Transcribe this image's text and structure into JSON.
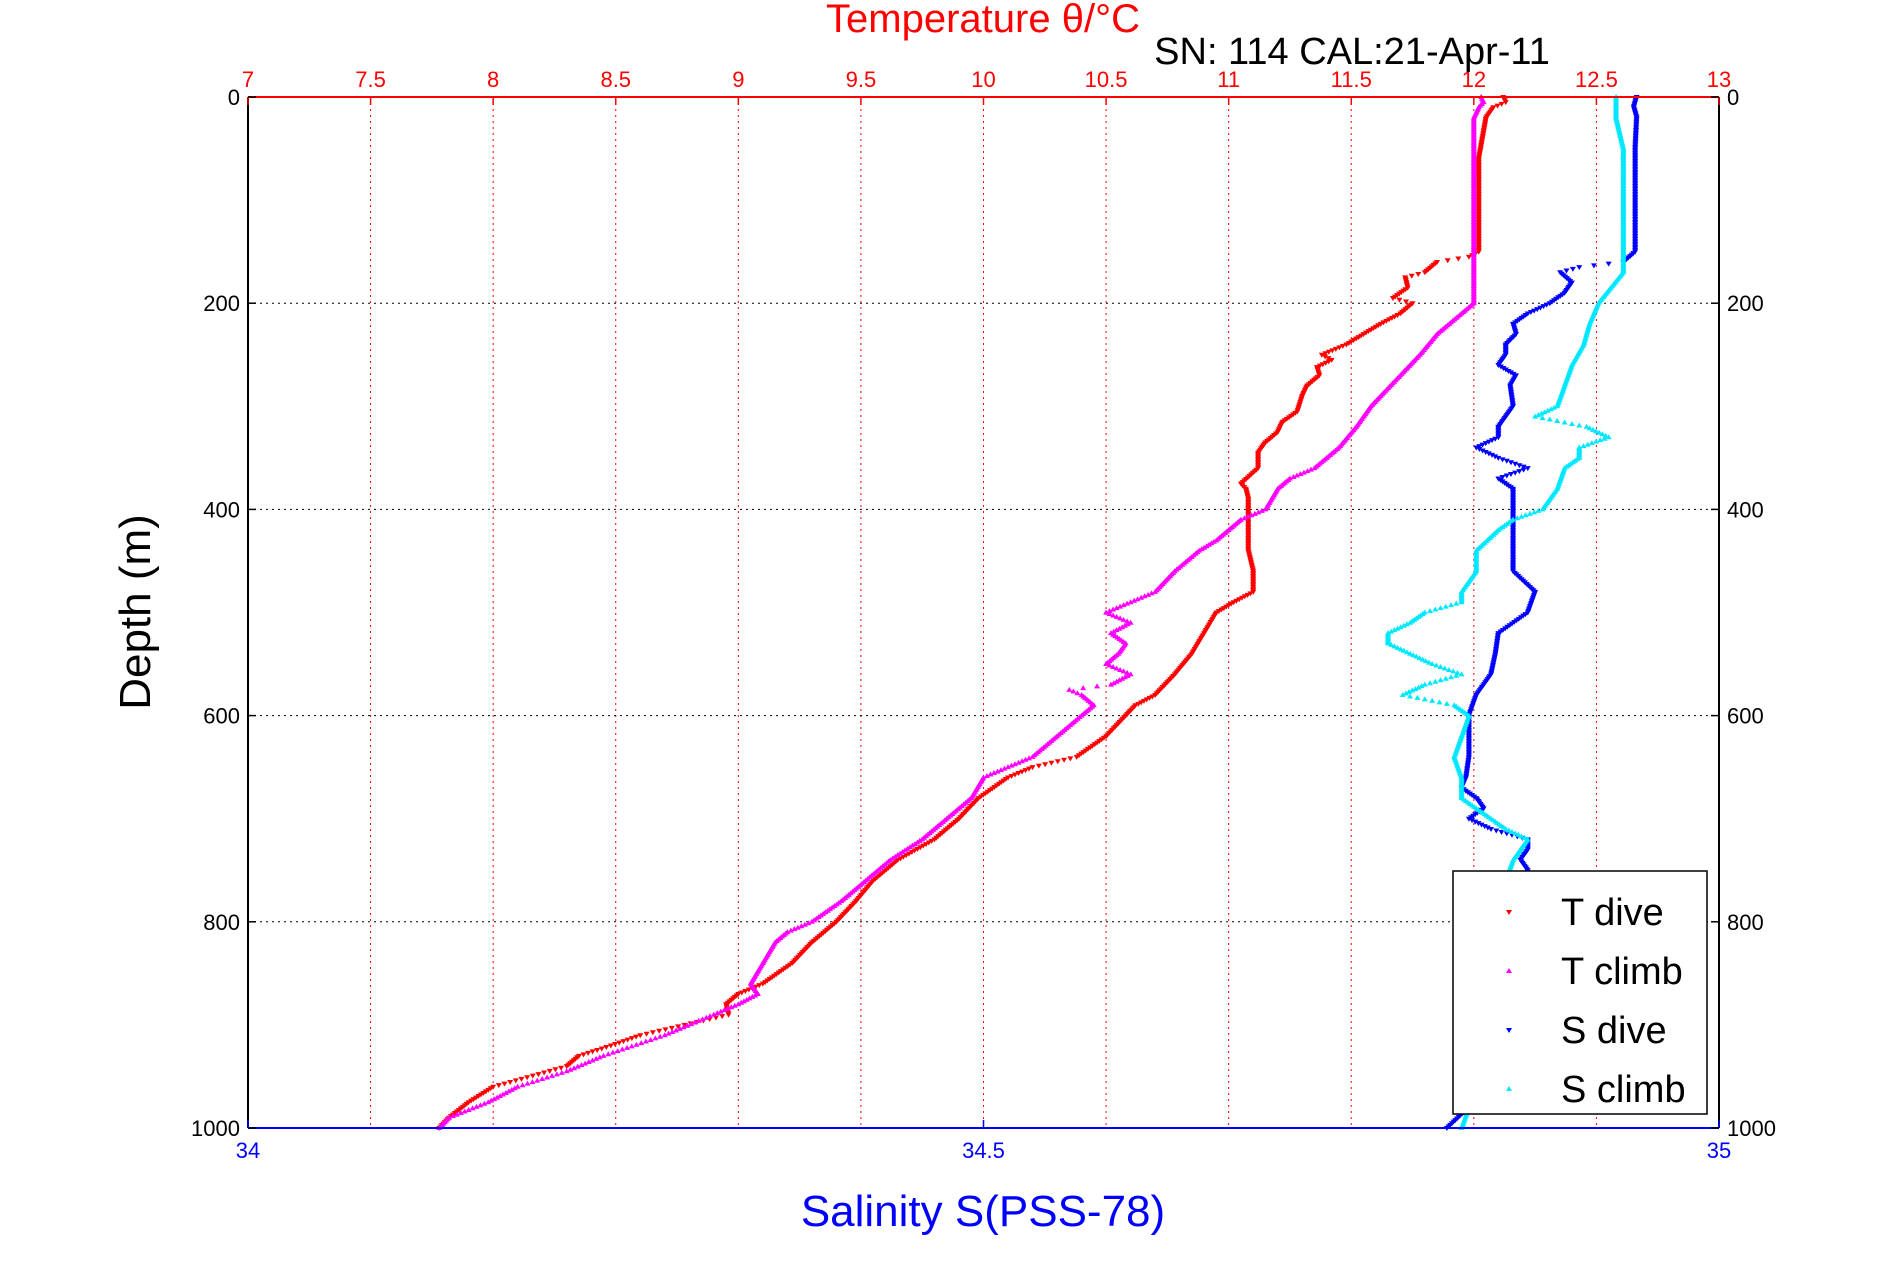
{
  "chart_data": {
    "type": "scatter",
    "title": "Temperature θ/°C",
    "subtitle": "SN: 114  CAL:21-Apr-11",
    "ylabel": "Depth (m)",
    "xlabel_top": "Temperature θ/°C",
    "xlabel_bottom": "Salinity S(PSS-78)",
    "ylim": [
      0,
      1000
    ],
    "y_reversed": true,
    "y_ticks": [
      0,
      200,
      400,
      600,
      800,
      1000
    ],
    "temperature_axis": {
      "range": [
        7,
        13
      ],
      "ticks": [
        "7",
        "7.5",
        "8",
        "8.5",
        "9",
        "9.5",
        "10",
        "10.5",
        "11",
        "11.5",
        "12",
        "12.5",
        "13"
      ]
    },
    "salinity_axis": {
      "range": [
        34,
        35
      ],
      "ticks": [
        "34",
        "34.5",
        "35"
      ]
    },
    "grid": true,
    "legend_position": "bottom-right",
    "colors": {
      "T dive": "#ff0000",
      "T climb": "#ff00ff",
      "S dive": "#0000ff",
      "S climb": "#00e8ff"
    },
    "series": [
      {
        "name": "T dive",
        "axis": "temperature",
        "points": [
          [
            0,
            12.12
          ],
          [
            5,
            12.13
          ],
          [
            10,
            12.08
          ],
          [
            20,
            12.05
          ],
          [
            60,
            12.02
          ],
          [
            100,
            12.02
          ],
          [
            150,
            12.02
          ],
          [
            155,
            11.98
          ],
          [
            160,
            11.85
          ],
          [
            170,
            11.8
          ],
          [
            175,
            11.72
          ],
          [
            185,
            11.73
          ],
          [
            195,
            11.67
          ],
          [
            200,
            11.75
          ],
          [
            210,
            11.7
          ],
          [
            220,
            11.62
          ],
          [
            230,
            11.55
          ],
          [
            240,
            11.48
          ],
          [
            250,
            11.38
          ],
          [
            255,
            11.42
          ],
          [
            262,
            11.36
          ],
          [
            270,
            11.37
          ],
          [
            280,
            11.32
          ],
          [
            290,
            11.3
          ],
          [
            305,
            11.28
          ],
          [
            315,
            11.22
          ],
          [
            325,
            11.2
          ],
          [
            335,
            11.15
          ],
          [
            345,
            11.12
          ],
          [
            360,
            11.12
          ],
          [
            375,
            11.05
          ],
          [
            380,
            11.07
          ],
          [
            390,
            11.08
          ],
          [
            400,
            11.08
          ],
          [
            420,
            11.08
          ],
          [
            440,
            11.08
          ],
          [
            460,
            11.1
          ],
          [
            480,
            11.1
          ],
          [
            490,
            11.02
          ],
          [
            500,
            10.95
          ],
          [
            520,
            10.9
          ],
          [
            540,
            10.85
          ],
          [
            560,
            10.78
          ],
          [
            580,
            10.7
          ],
          [
            590,
            10.62
          ],
          [
            600,
            10.58
          ],
          [
            620,
            10.5
          ],
          [
            640,
            10.38
          ],
          [
            650,
            10.2
          ],
          [
            660,
            10.1
          ],
          [
            680,
            9.98
          ],
          [
            700,
            9.9
          ],
          [
            720,
            9.8
          ],
          [
            740,
            9.65
          ],
          [
            760,
            9.55
          ],
          [
            780,
            9.48
          ],
          [
            800,
            9.4
          ],
          [
            820,
            9.3
          ],
          [
            840,
            9.22
          ],
          [
            860,
            9.1
          ],
          [
            870,
            9.0
          ],
          [
            880,
            8.95
          ],
          [
            890,
            8.96
          ],
          [
            900,
            8.78
          ],
          [
            910,
            8.6
          ],
          [
            920,
            8.48
          ],
          [
            930,
            8.35
          ],
          [
            940,
            8.3
          ],
          [
            960,
            8.0
          ],
          [
            975,
            7.9
          ],
          [
            990,
            7.82
          ],
          [
            1000,
            7.78
          ]
        ]
      },
      {
        "name": "T climb",
        "axis": "temperature",
        "points": [
          [
            0,
            12.03
          ],
          [
            5,
            12.04
          ],
          [
            10,
            12.02
          ],
          [
            20,
            12.0
          ],
          [
            40,
            12.0
          ],
          [
            100,
            12.0
          ],
          [
            150,
            12.0
          ],
          [
            200,
            12.0
          ],
          [
            210,
            11.95
          ],
          [
            220,
            11.9
          ],
          [
            230,
            11.85
          ],
          [
            250,
            11.78
          ],
          [
            270,
            11.7
          ],
          [
            290,
            11.62
          ],
          [
            300,
            11.58
          ],
          [
            320,
            11.52
          ],
          [
            340,
            11.45
          ],
          [
            350,
            11.4
          ],
          [
            360,
            11.35
          ],
          [
            370,
            11.25
          ],
          [
            380,
            11.2
          ],
          [
            400,
            11.15
          ],
          [
            410,
            11.05
          ],
          [
            420,
            11.0
          ],
          [
            430,
            10.95
          ],
          [
            440,
            10.88
          ],
          [
            460,
            10.78
          ],
          [
            480,
            10.7
          ],
          [
            490,
            10.6
          ],
          [
            500,
            10.5
          ],
          [
            510,
            10.6
          ],
          [
            520,
            10.52
          ],
          [
            530,
            10.58
          ],
          [
            540,
            10.55
          ],
          [
            550,
            10.5
          ],
          [
            560,
            10.6
          ],
          [
            570,
            10.52
          ],
          [
            575,
            10.35
          ],
          [
            580,
            10.4
          ],
          [
            590,
            10.45
          ],
          [
            600,
            10.4
          ],
          [
            620,
            10.3
          ],
          [
            640,
            10.2
          ],
          [
            650,
            10.1
          ],
          [
            660,
            10.0
          ],
          [
            680,
            9.95
          ],
          [
            700,
            9.85
          ],
          [
            720,
            9.75
          ],
          [
            740,
            9.62
          ],
          [
            760,
            9.52
          ],
          [
            780,
            9.42
          ],
          [
            800,
            9.3
          ],
          [
            810,
            9.2
          ],
          [
            820,
            9.15
          ],
          [
            840,
            9.1
          ],
          [
            860,
            9.05
          ],
          [
            870,
            9.08
          ],
          [
            880,
            9.0
          ],
          [
            890,
            8.9
          ],
          [
            910,
            8.7
          ],
          [
            930,
            8.45
          ],
          [
            945,
            8.3
          ],
          [
            960,
            8.1
          ],
          [
            975,
            7.98
          ],
          [
            990,
            7.82
          ],
          [
            1000,
            7.78
          ]
        ]
      },
      {
        "name": "S dive",
        "axis": "salinity",
        "points": [
          [
            0,
            34.944
          ],
          [
            10,
            34.942
          ],
          [
            20,
            34.944
          ],
          [
            50,
            34.943
          ],
          [
            100,
            34.943
          ],
          [
            150,
            34.943
          ],
          [
            160,
            34.935
          ],
          [
            165,
            34.905
          ],
          [
            170,
            34.892
          ],
          [
            180,
            34.9
          ],
          [
            190,
            34.895
          ],
          [
            200,
            34.885
          ],
          [
            210,
            34.87
          ],
          [
            220,
            34.86
          ],
          [
            230,
            34.862
          ],
          [
            240,
            34.855
          ],
          [
            250,
            34.855
          ],
          [
            260,
            34.85
          ],
          [
            270,
            34.862
          ],
          [
            280,
            34.858
          ],
          [
            300,
            34.86
          ],
          [
            310,
            34.855
          ],
          [
            320,
            34.85
          ],
          [
            330,
            34.85
          ],
          [
            340,
            34.835
          ],
          [
            350,
            34.85
          ],
          [
            360,
            34.87
          ],
          [
            370,
            34.85
          ],
          [
            380,
            34.86
          ],
          [
            400,
            34.86
          ],
          [
            420,
            34.86
          ],
          [
            440,
            34.86
          ],
          [
            460,
            34.86
          ],
          [
            480,
            34.875
          ],
          [
            500,
            34.87
          ],
          [
            520,
            34.85
          ],
          [
            540,
            34.848
          ],
          [
            560,
            34.845
          ],
          [
            580,
            34.835
          ],
          [
            600,
            34.83
          ],
          [
            620,
            34.83
          ],
          [
            640,
            34.83
          ],
          [
            660,
            34.828
          ],
          [
            670,
            34.825
          ],
          [
            680,
            34.835
          ],
          [
            690,
            34.84
          ],
          [
            700,
            34.83
          ],
          [
            710,
            34.845
          ],
          [
            720,
            34.87
          ],
          [
            730,
            34.87
          ],
          [
            740,
            34.865
          ],
          [
            750,
            34.87
          ],
          [
            780,
            34.865
          ],
          [
            800,
            34.86
          ],
          [
            850,
            34.855
          ],
          [
            900,
            34.85
          ],
          [
            950,
            34.84
          ],
          [
            980,
            34.83
          ],
          [
            1000,
            34.815
          ]
        ]
      },
      {
        "name": "S climb",
        "axis": "salinity",
        "points": [
          [
            0,
            34.93
          ],
          [
            20,
            34.93
          ],
          [
            50,
            34.935
          ],
          [
            100,
            34.935
          ],
          [
            150,
            34.935
          ],
          [
            170,
            34.935
          ],
          [
            200,
            34.918
          ],
          [
            220,
            34.912
          ],
          [
            240,
            34.908
          ],
          [
            260,
            34.9
          ],
          [
            280,
            34.895
          ],
          [
            300,
            34.89
          ],
          [
            310,
            34.875
          ],
          [
            320,
            34.91
          ],
          [
            330,
            34.925
          ],
          [
            340,
            34.905
          ],
          [
            350,
            34.905
          ],
          [
            360,
            34.895
          ],
          [
            380,
            34.89
          ],
          [
            400,
            34.88
          ],
          [
            410,
            34.86
          ],
          [
            420,
            34.85
          ],
          [
            440,
            34.835
          ],
          [
            460,
            34.835
          ],
          [
            480,
            34.825
          ],
          [
            490,
            34.825
          ],
          [
            500,
            34.8
          ],
          [
            510,
            34.79
          ],
          [
            520,
            34.775
          ],
          [
            530,
            34.775
          ],
          [
            540,
            34.79
          ],
          [
            550,
            34.805
          ],
          [
            560,
            34.825
          ],
          [
            570,
            34.8
          ],
          [
            580,
            34.785
          ],
          [
            590,
            34.82
          ],
          [
            600,
            34.83
          ],
          [
            620,
            34.825
          ],
          [
            640,
            34.82
          ],
          [
            660,
            34.825
          ],
          [
            680,
            34.825
          ],
          [
            690,
            34.835
          ],
          [
            700,
            34.845
          ],
          [
            710,
            34.855
          ],
          [
            720,
            34.87
          ],
          [
            730,
            34.865
          ],
          [
            740,
            34.86
          ],
          [
            760,
            34.855
          ],
          [
            780,
            34.855
          ],
          [
            800,
            34.85
          ],
          [
            850,
            34.845
          ],
          [
            900,
            34.84
          ],
          [
            950,
            34.835
          ],
          [
            980,
            34.83
          ],
          [
            1000,
            34.825
          ]
        ]
      }
    ]
  }
}
